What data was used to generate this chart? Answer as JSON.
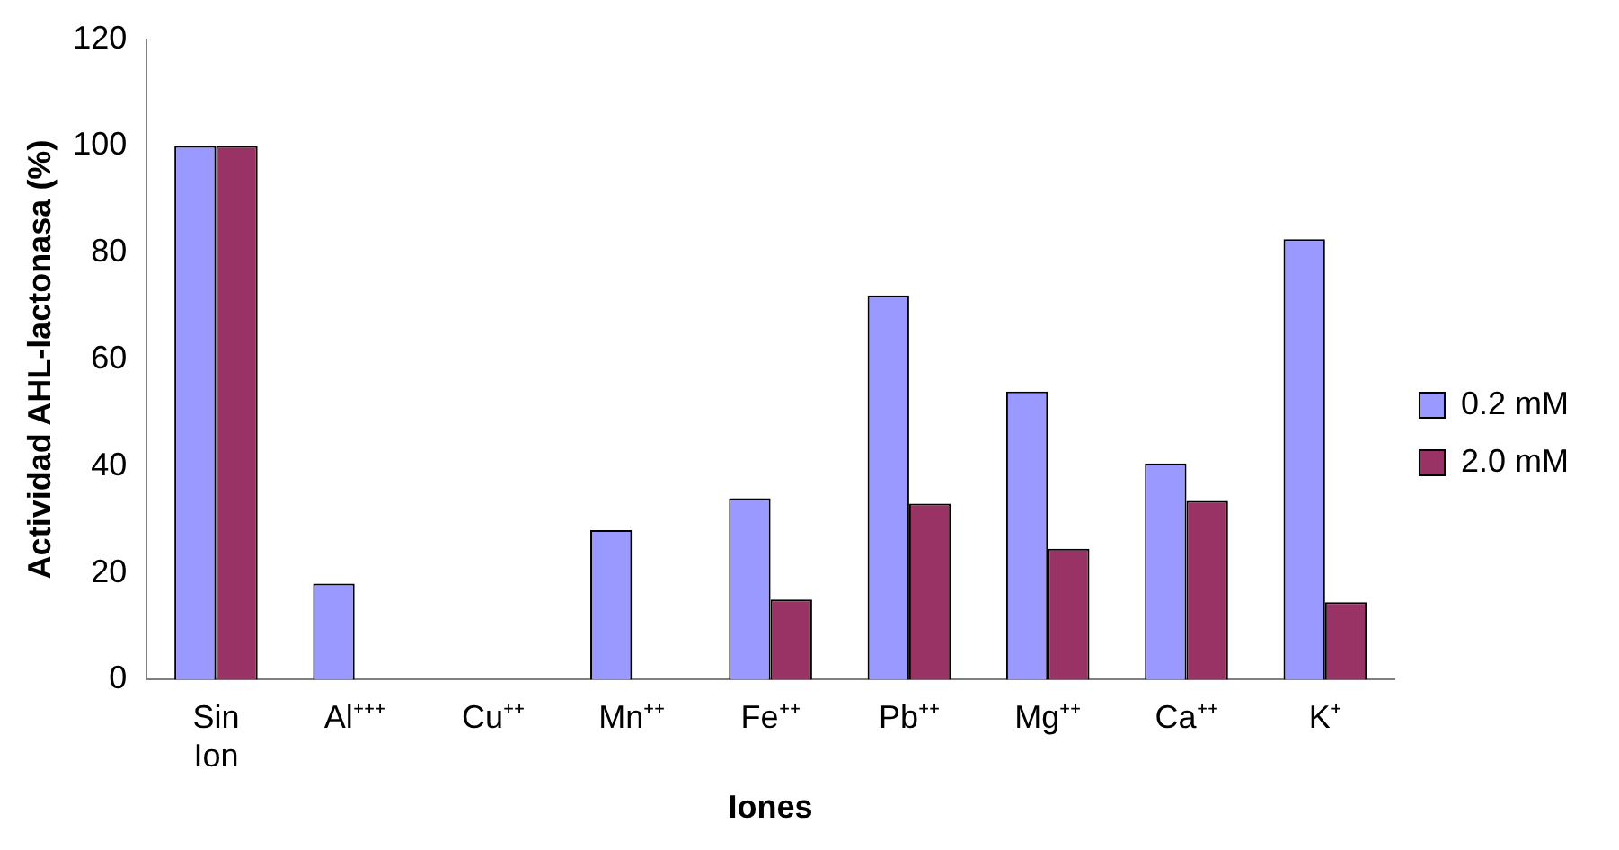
{
  "chart_data": {
    "type": "bar",
    "xlabel": "Iones",
    "ylabel": "Actividad AHL-lactonasa (%)",
    "categories": [
      "Sin Ion",
      "Al⁺⁺⁺",
      "Cu⁺⁺",
      "Mn⁺⁺",
      "Fe⁺⁺",
      "Pb⁺⁺",
      "Mg⁺⁺",
      "Ca⁺⁺",
      "K⁺"
    ],
    "series": [
      {
        "name": "0.2 mM",
        "color": "#9999ff",
        "values": [
          100,
          18,
          0,
          28,
          34,
          72,
          54,
          40.5,
          82.5
        ]
      },
      {
        "name": "2.0 mM",
        "color": "#993366",
        "values": [
          100,
          0,
          0,
          0,
          15,
          33,
          24.5,
          33.5,
          14.5
        ]
      }
    ],
    "ylim": [
      0,
      120
    ],
    "yticks": [
      0,
      20,
      40,
      60,
      80,
      100,
      120
    ],
    "grid": false,
    "legend": "right"
  }
}
